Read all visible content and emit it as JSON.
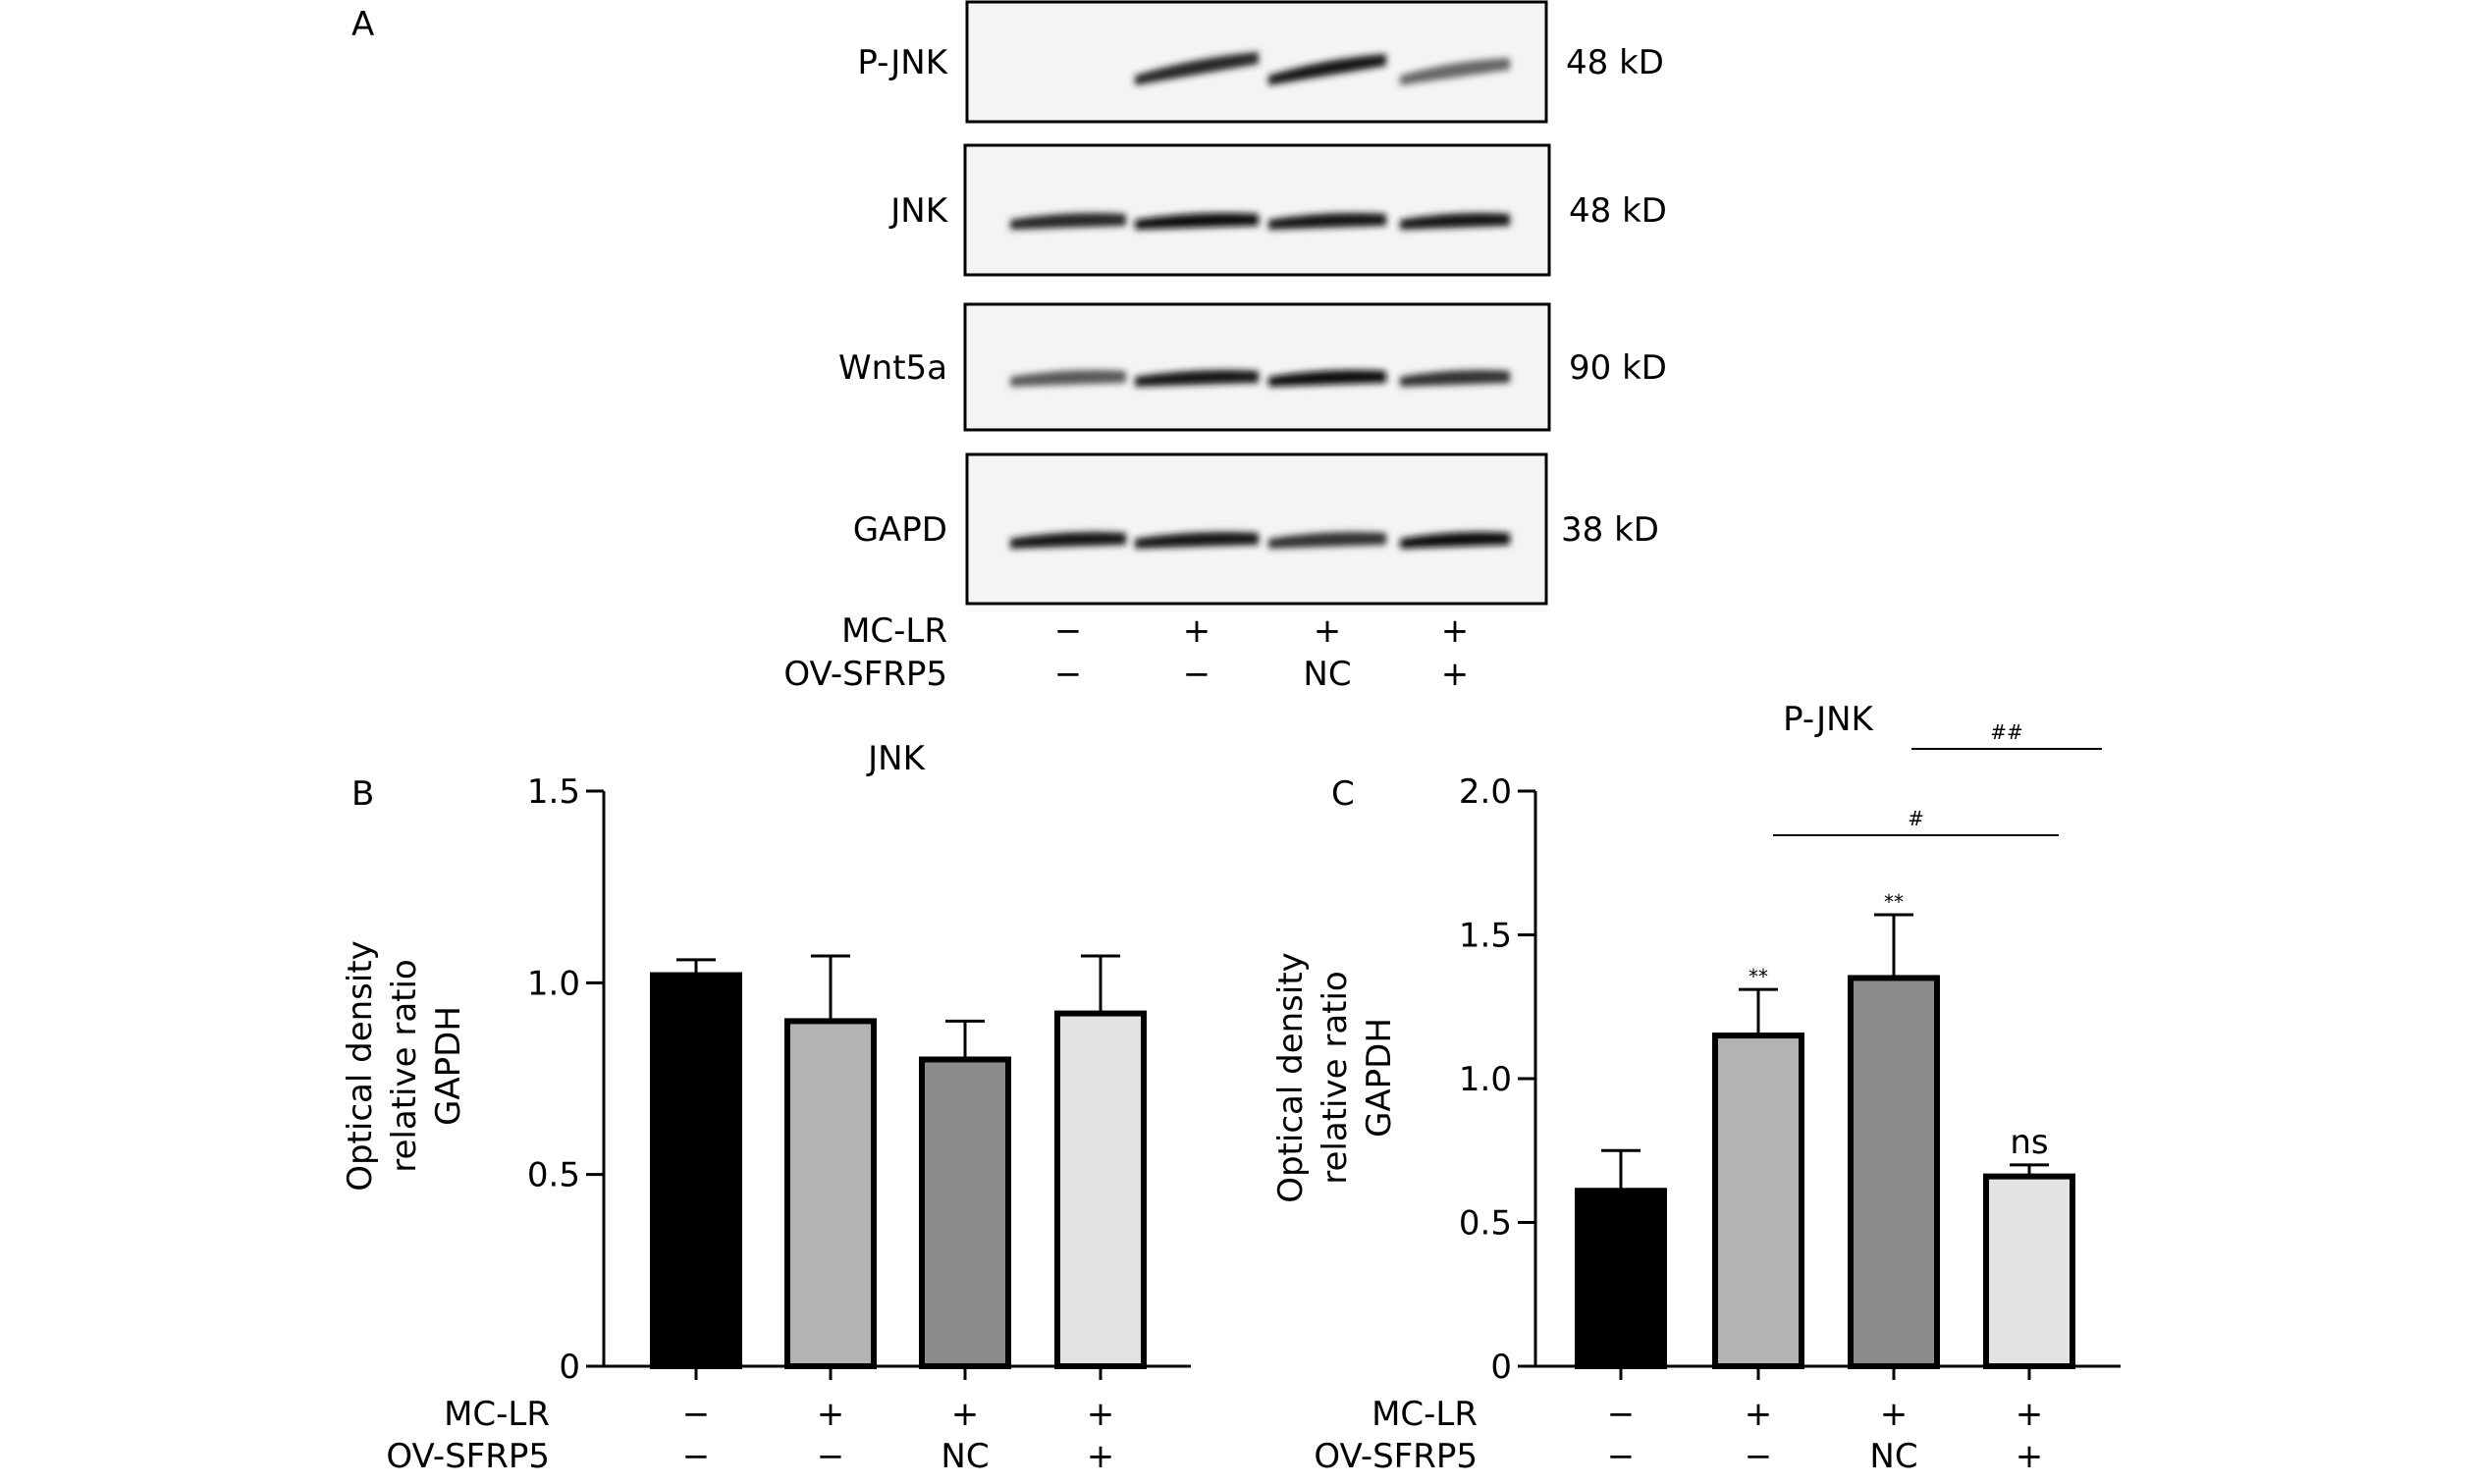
{
  "panel_a": {
    "letter": "A",
    "blots": [
      {
        "label": "P-JNK",
        "size": "48 kD",
        "intensity": [
          0.0,
          0.85,
          0.9,
          0.6
        ]
      },
      {
        "label": "JNK",
        "size": "48 kD",
        "intensity": [
          0.85,
          0.95,
          0.9,
          0.9
        ]
      },
      {
        "label": "Wnt5a",
        "size": "90 kD",
        "intensity": [
          0.65,
          0.9,
          0.95,
          0.8
        ]
      },
      {
        "label": "GAPD",
        "size": "38 kD",
        "intensity": [
          0.9,
          0.9,
          0.8,
          0.95
        ]
      }
    ],
    "conditions": [
      {
        "name": "MC-LR",
        "values": [
          "−",
          "+",
          "+",
          "+"
        ]
      },
      {
        "name": "OV-SFRP5",
        "values": [
          "−",
          "−",
          "NC",
          "+"
        ]
      }
    ]
  },
  "chart_data": [
    {
      "panel": "B",
      "type": "bar",
      "title": "JNK",
      "ylabel": [
        "Optical density",
        "relative ratio",
        "GAPDH"
      ],
      "ylim": [
        0,
        1.5
      ],
      "yticks": [
        "0",
        "0.5",
        "1.0",
        "1.5"
      ],
      "ytick_values": [
        0,
        0.5,
        1.0,
        1.5
      ],
      "values": [
        1.02,
        0.9,
        0.8,
        0.92
      ],
      "errors": [
        0.04,
        0.17,
        0.1,
        0.15
      ],
      "colors": [
        "#000000",
        "#b3b3b3",
        "#8c8c8c",
        "#e3e3e3"
      ],
      "conditions": [
        {
          "name": "MC-LR",
          "values": [
            "−",
            "+",
            "+",
            "+"
          ]
        },
        {
          "name": "OV-SFRP5",
          "values": [
            "−",
            "−",
            "NC",
            "+"
          ]
        }
      ],
      "bar_annotations": [
        "",
        "",
        "",
        ""
      ],
      "comparisons": []
    },
    {
      "panel": "C",
      "type": "bar",
      "title": "P-JNK",
      "ylabel": [
        "Optical density",
        "relative ratio",
        "GAPDH"
      ],
      "ylim": [
        0,
        2.0
      ],
      "yticks": [
        "0",
        "0.5",
        "1.0",
        "1.5",
        "2.0"
      ],
      "ytick_values": [
        0,
        0.5,
        1.0,
        1.5,
        2.0
      ],
      "values": [
        0.61,
        1.15,
        1.35,
        0.66
      ],
      "errors": [
        0.14,
        0.16,
        0.22,
        0.04
      ],
      "colors": [
        "#000000",
        "#b3b3b3",
        "#8c8c8c",
        "#e3e3e3"
      ],
      "conditions": [
        {
          "name": "MC-LR",
          "values": [
            "−",
            "+",
            "+",
            "+"
          ]
        },
        {
          "name": "OV-SFRP5",
          "values": [
            "−",
            "−",
            "NC",
            "+"
          ]
        }
      ],
      "bar_annotations": [
        "",
        "**",
        "**",
        "ns"
      ],
      "comparisons": [
        {
          "label": "##",
          "from": 2,
          "to": 3
        },
        {
          "label": "#",
          "from": 1,
          "to": 3
        }
      ]
    }
  ]
}
